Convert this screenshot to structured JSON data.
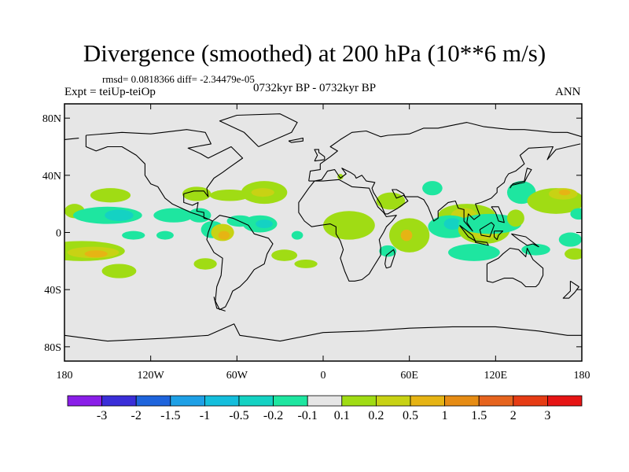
{
  "title": "Divergence (smoothed) at 200 hPa (10**6 m/s)",
  "stats": "rmsd= 0.0818366 diff= -2.34479e-05",
  "experiment": "Expt = teiUp-teiOp",
  "period": "0732kyr BP - 0732kyr BP",
  "season": "ANN",
  "colors": {
    "land_background": "#e6e6e6",
    "coast": "#000000"
  },
  "chart_data": {
    "type": "heatmap",
    "projection": "cylindrical-equidistant",
    "xlim": [
      -180,
      180
    ],
    "ylim": [
      -90,
      90
    ],
    "x_ticks": [
      {
        "value": -180,
        "label": "180"
      },
      {
        "value": -120,
        "label": "120W"
      },
      {
        "value": -60,
        "label": "60W"
      },
      {
        "value": 0,
        "label": "0"
      },
      {
        "value": 60,
        "label": "60E"
      },
      {
        "value": 120,
        "label": "120E"
      },
      {
        "value": 180,
        "label": "180"
      }
    ],
    "y_ticks": [
      {
        "value": 80,
        "label": "80N"
      },
      {
        "value": 40,
        "label": "40N"
      },
      {
        "value": 0,
        "label": "0"
      },
      {
        "value": -40,
        "label": "40S"
      },
      {
        "value": -80,
        "label": "80S"
      }
    ],
    "colorbar": {
      "labels": [
        "-3",
        "-2",
        "-1.5",
        "-1",
        "-0.5",
        "-0.2",
        "-0.1",
        "0.1",
        "0.2",
        "0.5",
        "1",
        "1.5",
        "2",
        "3"
      ],
      "colors": [
        "#8a1ee8",
        "#3a2ed8",
        "#1e64dc",
        "#1ea0e6",
        "#14bedc",
        "#14d2c3",
        "#1ee6a0",
        "#e6e6e6",
        "#a0dc14",
        "#c8d214",
        "#e6b414",
        "#e68c14",
        "#e6641e",
        "#e63c14",
        "#e61414"
      ]
    },
    "features": [
      {
        "label": "0.1",
        "lon": -148,
        "lat": 26,
        "rx": 14,
        "ry": 5
      },
      {
        "label": "0.1",
        "lon": -173,
        "lat": 15,
        "rx": 7,
        "ry": 5
      },
      {
        "label": "-0.1",
        "lon": -150,
        "lat": 12,
        "rx": 24,
        "ry": 6
      },
      {
        "label": "-0.2",
        "lon": -142,
        "lat": 12,
        "rx": 10,
        "ry": 4
      },
      {
        "label": "-0.1",
        "lon": -104,
        "lat": 12,
        "rx": 14,
        "ry": 5
      },
      {
        "label": "-0.1",
        "lon": -132,
        "lat": -2,
        "rx": 8,
        "ry": 3
      },
      {
        "label": "-0.1",
        "lon": -110,
        "lat": -2,
        "rx": 6,
        "ry": 3
      },
      {
        "label": "0.1",
        "lon": -168,
        "lat": -13,
        "rx": 30,
        "ry": 7
      },
      {
        "label": "0.2",
        "lon": -160,
        "lat": -14,
        "rx": 18,
        "ry": 4
      },
      {
        "label": "0.5",
        "lon": -158,
        "lat": -15,
        "rx": 8,
        "ry": 2.5
      },
      {
        "label": "0.1",
        "lon": -142,
        "lat": -27,
        "rx": 12,
        "ry": 5
      },
      {
        "label": "0.1",
        "lon": -88,
        "lat": 27,
        "rx": 10,
        "ry": 5
      },
      {
        "label": "0.1",
        "lon": -65,
        "lat": 26,
        "rx": 14,
        "ry": 4
      },
      {
        "label": "0.1",
        "lon": -41,
        "lat": 28,
        "rx": 16,
        "ry": 8
      },
      {
        "label": "0.2",
        "lon": -42,
        "lat": 28,
        "rx": 8,
        "ry": 3
      },
      {
        "label": "-0.1",
        "lon": -86,
        "lat": 12,
        "rx": 8,
        "ry": 5
      },
      {
        "label": "-0.1",
        "lon": -77,
        "lat": 2,
        "rx": 8,
        "ry": 6
      },
      {
        "label": "0.2",
        "lon": -70,
        "lat": 0,
        "rx": 8,
        "ry": 6
      },
      {
        "label": "0.5",
        "lon": -69,
        "lat": -2,
        "rx": 4,
        "ry": 3
      },
      {
        "label": "-0.1",
        "lon": -58,
        "lat": 8,
        "rx": 9,
        "ry": 4
      },
      {
        "label": "-0.1",
        "lon": -44,
        "lat": 6,
        "rx": 12,
        "ry": 6
      },
      {
        "label": "-0.2",
        "lon": -41,
        "lat": 6,
        "rx": 6,
        "ry": 3
      },
      {
        "label": "0.1",
        "lon": -82,
        "lat": -22,
        "rx": 8,
        "ry": 4
      },
      {
        "label": "0.1",
        "lon": -27,
        "lat": -16,
        "rx": 9,
        "ry": 4
      },
      {
        "label": "0.1",
        "lon": -12,
        "lat": -22,
        "rx": 8,
        "ry": 3
      },
      {
        "label": "-0.1",
        "lon": -18,
        "lat": -2,
        "rx": 4,
        "ry": 3
      },
      {
        "label": "0.1",
        "lon": 12,
        "lat": 39,
        "rx": 2,
        "ry": 2
      },
      {
        "label": "0.1",
        "lon": 18,
        "lat": 5,
        "rx": 18,
        "ry": 10
      },
      {
        "label": "0.1",
        "lon": 47,
        "lat": 22,
        "rx": 10,
        "ry": 6
      },
      {
        "label": "0.1",
        "lon": 60,
        "lat": -2,
        "rx": 14,
        "ry": 12
      },
      {
        "label": "0.5",
        "lon": 58,
        "lat": -2,
        "rx": 4,
        "ry": 4
      },
      {
        "label": "-0.1",
        "lon": 45,
        "lat": -13,
        "rx": 6,
        "ry": 4
      },
      {
        "label": "-0.1",
        "lon": 76,
        "lat": 31,
        "rx": 7,
        "ry": 5
      },
      {
        "label": "0.1",
        "lon": 100,
        "lat": 12,
        "rx": 20,
        "ry": 8
      },
      {
        "label": "0.2",
        "lon": 98,
        "lat": 12,
        "rx": 9,
        "ry": 5
      },
      {
        "label": "-0.1",
        "lon": 88,
        "lat": 4,
        "rx": 15,
        "ry": 8
      },
      {
        "label": "-0.2",
        "lon": 90,
        "lat": 6,
        "rx": 6,
        "ry": 4
      },
      {
        "label": "0.1",
        "lon": 112,
        "lat": 2,
        "rx": 18,
        "ry": 10
      },
      {
        "label": "0.2",
        "lon": 112,
        "lat": 2,
        "rx": 10,
        "ry": 7
      },
      {
        "label": "-0.1",
        "lon": 116,
        "lat": 6,
        "rx": 22,
        "ry": 7
      },
      {
        "label": "0.1",
        "lon": 134,
        "lat": 10,
        "rx": 6,
        "ry": 6
      },
      {
        "label": "-0.1",
        "lon": 138,
        "lat": 28,
        "rx": 10,
        "ry": 8
      },
      {
        "label": "0.1",
        "lon": 162,
        "lat": 22,
        "rx": 20,
        "ry": 9
      },
      {
        "label": "0.2",
        "lon": 167,
        "lat": 27,
        "rx": 10,
        "ry": 4
      },
      {
        "label": "0.5",
        "lon": 168,
        "lat": 28,
        "rx": 4,
        "ry": 2
      },
      {
        "label": "-0.1",
        "lon": 178,
        "lat": 13,
        "rx": 6,
        "ry": 4
      },
      {
        "label": "-0.1",
        "lon": 105,
        "lat": -14,
        "rx": 18,
        "ry": 6
      },
      {
        "label": "-0.1",
        "lon": 148,
        "lat": -12,
        "rx": 10,
        "ry": 4
      },
      {
        "label": "-0.1",
        "lon": 172,
        "lat": -5,
        "rx": 8,
        "ry": 5
      },
      {
        "label": "0.1",
        "lon": 175,
        "lat": -15,
        "rx": 7,
        "ry": 4
      }
    ]
  }
}
